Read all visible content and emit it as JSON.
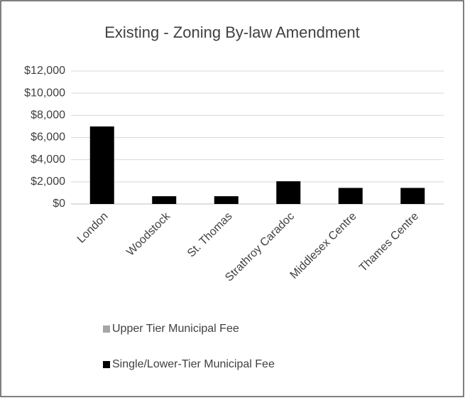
{
  "chart_data": {
    "type": "bar",
    "stacked": true,
    "title": "Existing - Zoning By-law Amendment",
    "categories": [
      "London",
      "Woodstock",
      "St. Thomas",
      "Strathroy Caradoc",
      "Middlesex Centre",
      "Thames Centre"
    ],
    "series": [
      {
        "name": "Upper Tier Municipal Fee",
        "color": "#a5a5a5",
        "values": [
          0,
          0,
          0,
          0,
          0,
          0
        ]
      },
      {
        "name": "Single/Lower-Tier Municipal Fee",
        "color": "#000000",
        "values": [
          7000,
          700,
          700,
          2050,
          1450,
          1450
        ]
      }
    ],
    "ylim": [
      0,
      12000
    ],
    "yticks": [
      {
        "value": 0,
        "label": "$0"
      },
      {
        "value": 2000,
        "label": "$2,000"
      },
      {
        "value": 4000,
        "label": "$4,000"
      },
      {
        "value": 6000,
        "label": "$6,000"
      },
      {
        "value": 8000,
        "label": "$8,000"
      },
      {
        "value": 10000,
        "label": "$10,000"
      },
      {
        "value": 12000,
        "label": "$12,000"
      }
    ],
    "grid": true,
    "legend": "bottom"
  }
}
